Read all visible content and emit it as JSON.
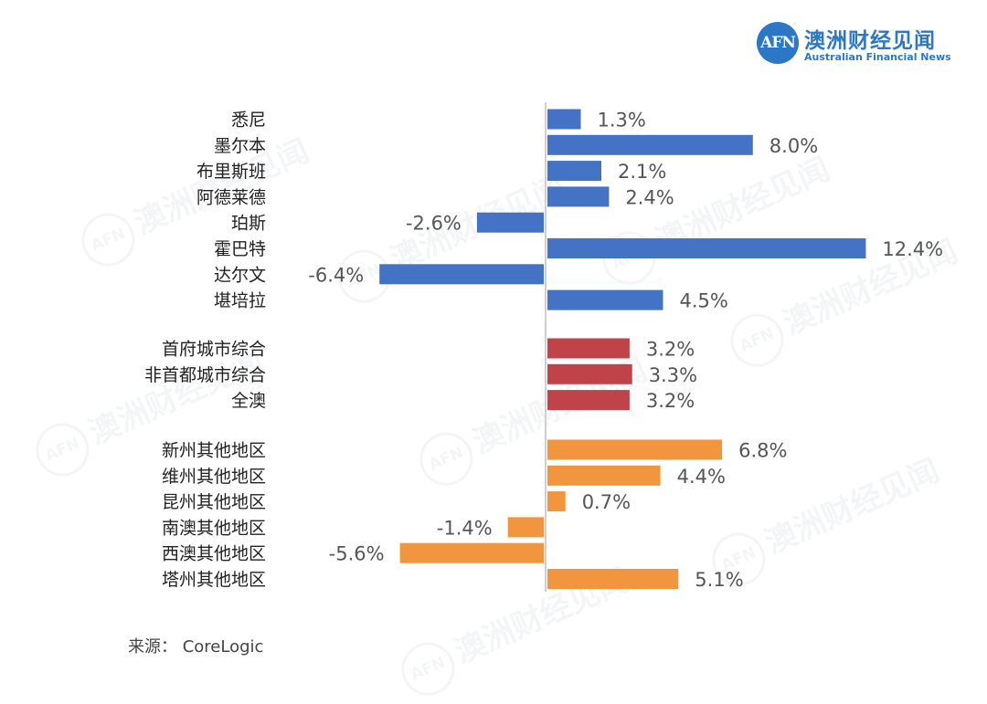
{
  "logo": {
    "mark": "AFN",
    "name_cn": "澳洲财经见闻",
    "name_en": "Australian Financial News"
  },
  "source_text": "来源： CoreLogic",
  "chart_data": {
    "type": "bar",
    "orientation": "horizontal",
    "grid": false,
    "value_unit": "%",
    "colors": {
      "cities": "#4472c4",
      "aggregates": "#c0434a",
      "regions": "#f1953f"
    },
    "groups": [
      {
        "color_key": "cities",
        "categories": [
          "悉尼",
          "墨尔本",
          "布里斯班",
          "阿德莱德",
          "珀斯",
          "霍巴特",
          "达尔文",
          "堪培拉"
        ],
        "values": [
          1.3,
          8.0,
          2.1,
          2.4,
          -2.6,
          12.4,
          -6.4,
          4.5
        ],
        "labels": [
          "1.3%",
          "8.0%",
          "2.1%",
          "2.4%",
          "-2.6%",
          "12.4%",
          "-6.4%",
          "4.5%"
        ]
      },
      {
        "color_key": "aggregates",
        "categories": [
          "首府城市综合",
          "非首都城市综合",
          "全澳"
        ],
        "values": [
          3.2,
          3.3,
          3.2
        ],
        "labels": [
          "3.2%",
          "3.3%",
          "3.2%"
        ]
      },
      {
        "color_key": "regions",
        "categories": [
          "新州其他地区",
          "维州其他地区",
          "昆州其他地区",
          "南澳其他地区",
          "西澳其他地区",
          "塔州其他地区"
        ],
        "values": [
          6.8,
          4.4,
          0.7,
          -1.4,
          -5.6,
          5.1
        ],
        "labels": [
          "6.8%",
          "4.4%",
          "0.7%",
          "-1.4%",
          "-5.6%",
          "5.1%"
        ]
      }
    ]
  }
}
